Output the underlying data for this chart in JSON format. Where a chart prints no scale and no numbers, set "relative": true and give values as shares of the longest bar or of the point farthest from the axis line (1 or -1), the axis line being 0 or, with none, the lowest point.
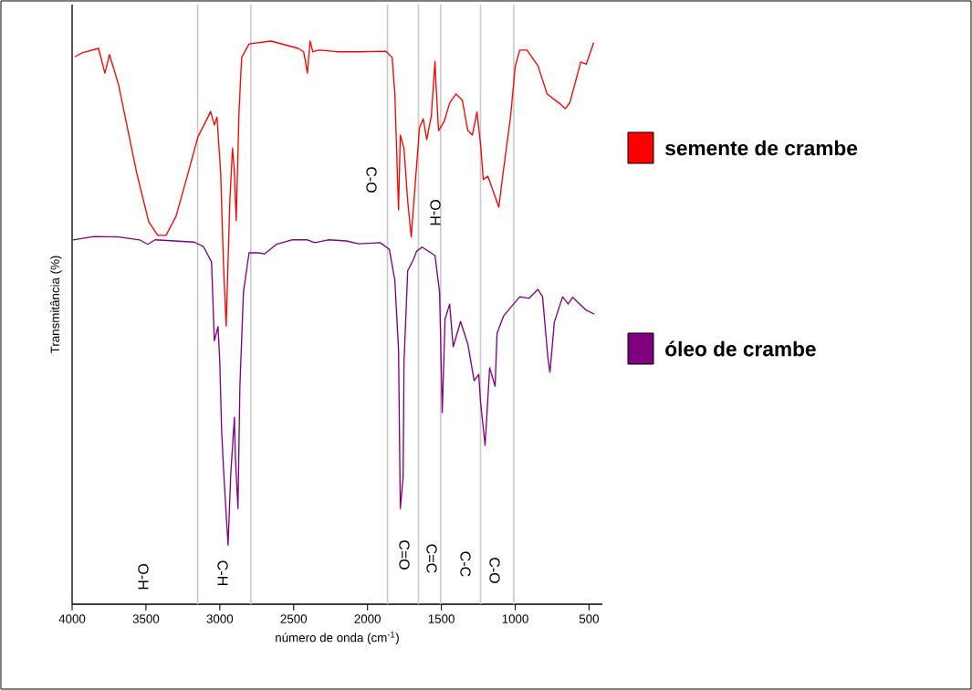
{
  "chart_data": {
    "type": "line",
    "relative": true,
    "xlabel": "número de onda (cm$^{-1}$)",
    "ylabel": "Transmitância (%)",
    "xlim": [
      4000,
      410
    ],
    "xticks": [
      4000,
      3500,
      3000,
      2500,
      2000,
      1500,
      1000,
      500
    ],
    "legend": "right",
    "line_style": "solid",
    "series": [
      {
        "name": "semente de crambe",
        "color": "#ff0000",
        "x": [
          3981,
          3932,
          3821,
          3778,
          3747,
          3685,
          3642,
          3562,
          3481,
          3420,
          3364,
          3296,
          3210,
          3148,
          3086,
          3062,
          3037,
          3019,
          2994,
          2975,
          2957,
          2932,
          2914,
          2901,
          2889,
          2870,
          2852,
          2802,
          2654,
          2469,
          2432,
          2407,
          2389,
          2370,
          2327,
          2204,
          2062,
          1877,
          1833,
          1815,
          1790,
          1778,
          1753,
          1728,
          1704,
          1667,
          1648,
          1623,
          1599,
          1568,
          1543,
          1537,
          1519,
          1481,
          1444,
          1401,
          1358,
          1321,
          1290,
          1259,
          1235,
          1216,
          1185,
          1142,
          1111,
          1080,
          1031,
          1000,
          969,
          920,
          846,
          784,
          704,
          660,
          630,
          556,
          519,
          469
        ],
        "values": [
          0.972,
          0.979,
          0.987,
          0.943,
          0.976,
          0.922,
          0.867,
          0.765,
          0.679,
          0.655,
          0.655,
          0.689,
          0.77,
          0.83,
          0.862,
          0.875,
          0.851,
          0.865,
          0.765,
          0.603,
          0.494,
          0.716,
          0.81,
          0.765,
          0.681,
          0.874,
          0.971,
          0.995,
          1.0,
          0.987,
          0.981,
          0.943,
          1.0,
          0.981,
          0.984,
          0.981,
          0.981,
          0.982,
          0.971,
          0.906,
          0.7,
          0.833,
          0.809,
          0.716,
          0.652,
          0.781,
          0.846,
          0.862,
          0.825,
          0.867,
          0.964,
          0.927,
          0.841,
          0.857,
          0.89,
          0.906,
          0.895,
          0.841,
          0.833,
          0.874,
          0.818,
          0.754,
          0.76,
          0.728,
          0.705,
          0.77,
          0.867,
          0.955,
          0.984,
          0.984,
          0.956,
          0.906,
          0.89,
          0.88,
          0.891,
          0.963,
          0.959,
          0.997
        ]
      },
      {
        "name": "óleo de crambe",
        "color": "#800080",
        "x": [
          3994,
          3852,
          3685,
          3543,
          3488,
          3438,
          3173,
          3111,
          3056,
          3037,
          3012,
          3000,
          2988,
          2975,
          2957,
          2944,
          2926,
          2901,
          2895,
          2877,
          2864,
          2840,
          2802,
          2741,
          2698,
          2617,
          2512,
          2407,
          2358,
          2265,
          2142,
          2062,
          1914,
          1852,
          1815,
          1790,
          1778,
          1759,
          1753,
          1728,
          1691,
          1667,
          1630,
          1543,
          1512,
          1494,
          1475,
          1444,
          1420,
          1370,
          1321,
          1278,
          1247,
          1235,
          1204,
          1173,
          1136,
          1123,
          1080,
          1031,
          969,
          907,
          846,
          815,
          778,
          765,
          735,
          679,
          642,
          611,
          519,
          463
        ],
        "values": [
          0.647,
          0.653,
          0.652,
          0.647,
          0.639,
          0.647,
          0.643,
          0.635,
          0.608,
          0.468,
          0.493,
          0.429,
          0.311,
          0.241,
          0.16,
          0.105,
          0.23,
          0.332,
          0.263,
          0.17,
          0.387,
          0.554,
          0.624,
          0.624,
          0.622,
          0.639,
          0.647,
          0.647,
          0.642,
          0.647,
          0.645,
          0.64,
          0.642,
          0.63,
          0.575,
          0.452,
          0.17,
          0.225,
          0.429,
          0.592,
          0.611,
          0.627,
          0.634,
          0.619,
          0.554,
          0.34,
          0.506,
          0.533,
          0.457,
          0.502,
          0.462,
          0.397,
          0.408,
          0.36,
          0.282,
          0.42,
          0.387,
          0.481,
          0.511,
          0.527,
          0.546,
          0.543,
          0.559,
          0.546,
          0.436,
          0.412,
          0.501,
          0.546,
          0.533,
          0.545,
          0.522,
          0.515
        ]
      }
    ],
    "ref_lines": [
      {
        "axis": "x",
        "value": 3150,
        "color": "#c8c8c8"
      },
      {
        "axis": "x",
        "value": 2790,
        "color": "#c8c8c8"
      },
      {
        "axis": "x",
        "value": 1865,
        "color": "#c8c8c8"
      },
      {
        "axis": "x",
        "value": 1655,
        "color": "#c8c8c8"
      },
      {
        "axis": "x",
        "value": 1505,
        "color": "#c8c8c8"
      },
      {
        "axis": "x",
        "value": 1235,
        "color": "#c8c8c8"
      },
      {
        "axis": "x",
        "value": 1010,
        "color": "#c8c8c8"
      }
    ],
    "annotations": [
      "O-H",
      "C-H",
      "C=O",
      "C=C",
      "C-C",
      "C-O",
      "C-O",
      "O-H"
    ]
  }
}
